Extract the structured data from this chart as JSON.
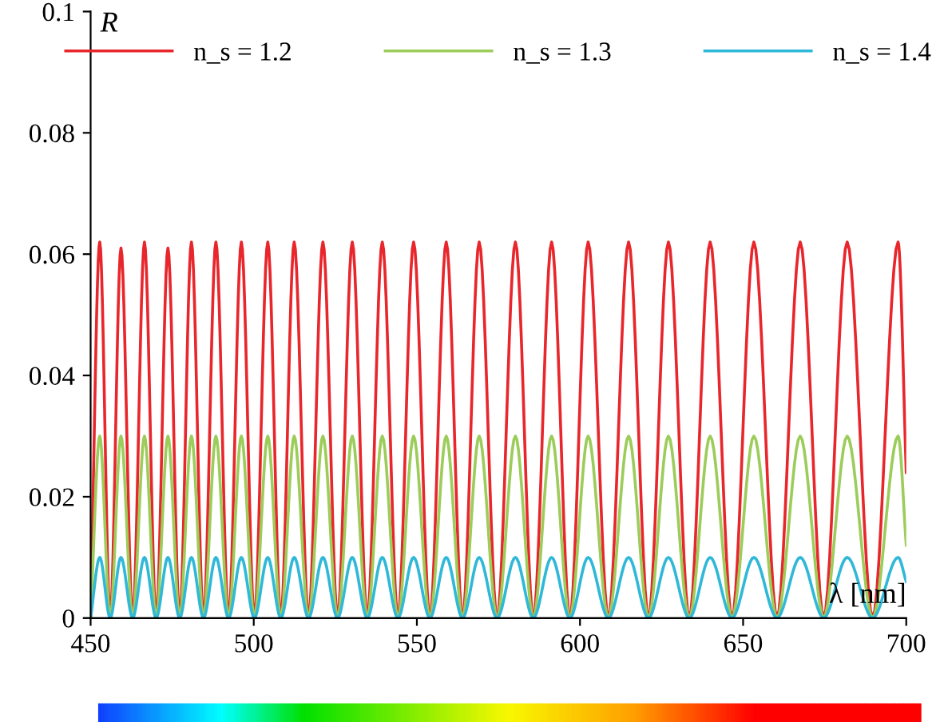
{
  "chart_data": {
    "type": "line",
    "xlabel": "λ [nm]",
    "ylabel": "R",
    "x": [
      450,
      452.8,
      456.0,
      459.3,
      462.9,
      466.5,
      470.1,
      473.7,
      477.3,
      480.9,
      484.6,
      488.4,
      492.3,
      496.2,
      500.2,
      504.3,
      508.3,
      512.4,
      516.8,
      521.2,
      525.7,
      530.2,
      534.8,
      539.4,
      544.2,
      549.0,
      554.0,
      559.0,
      564.0,
      569.1,
      574.6,
      580.2,
      585.7,
      591.3,
      596.9,
      602.5,
      608.7,
      614.9,
      621.0,
      627.1,
      633.5,
      639.9,
      646.6,
      653.3,
      660.4,
      667.5,
      674.7,
      681.9,
      689.7,
      697.5,
      700
    ],
    "series": [
      {
        "name": "n_s = 1.2",
        "color": "#e8262b",
        "values": [
          0,
          0.062,
          0,
          0.061,
          0,
          0.062,
          0,
          0.061,
          0,
          0.062,
          0,
          0.062,
          0,
          0.062,
          0,
          0.062,
          0,
          0.062,
          0,
          0.062,
          0,
          0.062,
          0,
          0.062,
          0,
          0.062,
          0,
          0.062,
          0,
          0.062,
          0,
          0.062,
          0,
          0.062,
          0,
          0.062,
          0,
          0.062,
          0,
          0.062,
          0,
          0.062,
          0,
          0.062,
          0,
          0.062,
          0,
          0.062,
          0,
          0.062,
          0.024
        ]
      },
      {
        "name": "n_s = 1.3",
        "color": "#9ccc5a",
        "values": [
          0,
          0.03,
          0,
          0.03,
          0,
          0.03,
          0,
          0.03,
          0,
          0.03,
          0,
          0.03,
          0,
          0.03,
          0,
          0.03,
          0,
          0.03,
          0,
          0.03,
          0,
          0.03,
          0,
          0.03,
          0,
          0.03,
          0,
          0.03,
          0,
          0.03,
          0,
          0.03,
          0,
          0.03,
          0,
          0.03,
          0,
          0.03,
          0,
          0.03,
          0,
          0.03,
          0,
          0.03,
          0,
          0.03,
          0,
          0.03,
          0,
          0.03,
          0.012
        ]
      },
      {
        "name": "n_s = 1.4",
        "color": "#2fb8d8",
        "values": [
          0,
          0.01,
          0,
          0.01,
          0,
          0.01,
          0,
          0.01,
          0,
          0.01,
          0,
          0.01,
          0,
          0.01,
          0,
          0.01,
          0,
          0.01,
          0,
          0.01,
          0,
          0.01,
          0,
          0.01,
          0,
          0.01,
          0,
          0.01,
          0,
          0.01,
          0,
          0.01,
          0,
          0.01,
          0,
          0.01,
          0,
          0.01,
          0,
          0.01,
          0,
          0.01,
          0,
          0.01,
          0,
          0.01,
          0,
          0.01,
          0,
          0.01,
          0.006
        ]
      }
    ],
    "xlim": [
      450,
      700
    ],
    "xticks": [
      450,
      500,
      550,
      600,
      650,
      700
    ],
    "ylim": [
      0,
      0.1
    ],
    "yticks": [
      0,
      0.02,
      0.04,
      0.06,
      0.08,
      0.1
    ],
    "grid": false,
    "legend": "top",
    "marker": "none",
    "line_style": "solid"
  }
}
